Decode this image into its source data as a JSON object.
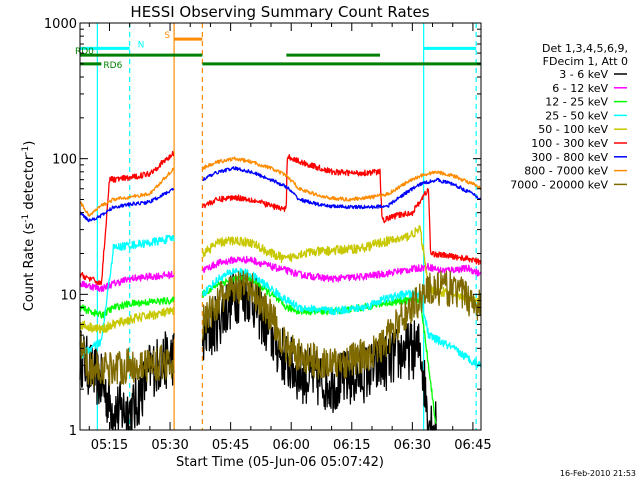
{
  "chart_data": {
    "type": "line",
    "title": "HESSI Observing Summary Count Rates",
    "xlabel": "Start Time (05-Jun-06 05:07:42)",
    "ylabel_main": "Count Rate (s",
    "ylabel_sup1": "-1",
    "ylabel_mid": " detector",
    "ylabel_sup2": "-1",
    "ylabel_end": ")",
    "footer": "16-Feb-2010 21:53",
    "x_start": "05:07:42",
    "x_end": "06:47:00",
    "xlim_minutes": [
      307.7,
      407.0
    ],
    "ylim": [
      1,
      1000
    ],
    "yscale": "log",
    "x_ticks": [
      "05:15",
      "05:30",
      "05:45",
      "06:00",
      "06:15",
      "06:30",
      "06:45"
    ],
    "x_tick_minutes": [
      315,
      330,
      345,
      360,
      375,
      390,
      405
    ],
    "y_ticks": [
      "1",
      "10",
      "100",
      "1000"
    ],
    "y_tick_values": [
      1,
      10,
      100,
      1000
    ],
    "legend": {
      "header_lines": [
        "Det 1,3,4,5,6,9,",
        "FDecim 1, Att 0"
      ],
      "entries": [
        {
          "label": "3 - 6 keV",
          "color": "#000000"
        },
        {
          "label": "6 - 12 keV",
          "color": "#ff00ff"
        },
        {
          "label": "12 - 25 keV",
          "color": "#00ff00"
        },
        {
          "label": "25 - 50 keV",
          "color": "#00ffff"
        },
        {
          "label": "50 - 100 keV",
          "color": "#c8c800"
        },
        {
          "label": "100 - 300 keV",
          "color": "#ff0000"
        },
        {
          "label": "300 - 800 keV",
          "color": "#0000ff"
        },
        {
          "label": "800 - 7000 keV",
          "color": "#ff8c00"
        },
        {
          "label": "7000 - 20000 keV",
          "color": "#7f6a00"
        }
      ]
    },
    "flags": [
      {
        "label": "N",
        "color": "#00ffff",
        "segments": [
          [
            307.7,
            320.0
          ],
          [
            392.8,
            405.8
          ]
        ],
        "y": 650
      },
      {
        "label": "S",
        "color": "#ff8c00",
        "segments": [
          [
            331.0,
            338.0
          ]
        ],
        "y": 760
      },
      {
        "label": "RD0",
        "color": "#008000",
        "segments": [
          [
            307.7,
            338.0
          ],
          [
            358.8,
            382.0
          ]
        ],
        "y": 580
      },
      {
        "label": "RD6",
        "color": "#008000",
        "segments": [
          [
            307.7,
            313.0
          ],
          [
            338.0,
            407.0
          ]
        ],
        "y": 500
      }
    ],
    "vlines": [
      {
        "minute": 312.0,
        "color": "#00ffff",
        "style": "solid"
      },
      {
        "minute": 320.0,
        "color": "#00ffff",
        "style": "dashed"
      },
      {
        "minute": 331.0,
        "color": "#ff8c00",
        "style": "solid"
      },
      {
        "minute": 338.0,
        "color": "#ff8c00",
        "style": "dashed"
      },
      {
        "minute": 392.8,
        "color": "#00ffff",
        "style": "solid"
      },
      {
        "minute": 405.8,
        "color": "#00ffff",
        "style": "dashed"
      }
    ],
    "gap": [
      331.0,
      338.0
    ],
    "segment_breaks": [
      358.8,
      382.0
    ],
    "series": [
      {
        "name": "3 - 6 keV",
        "color": "#000000",
        "noise": 0.5,
        "points": [
          [
            307.7,
            3.5
          ],
          [
            313.0,
            2.2
          ],
          [
            316.0,
            1.4
          ],
          [
            321.0,
            1.4
          ],
          [
            325.0,
            2.8
          ],
          [
            331.0,
            3.5
          ],
          [
            338.0,
            4.5
          ],
          [
            342.0,
            6.5
          ],
          [
            346.0,
            10.0
          ],
          [
            350.0,
            10.0
          ],
          [
            355.0,
            5.0
          ],
          [
            358.8,
            3.2
          ],
          [
            362.0,
            2.6
          ],
          [
            370.0,
            2.2
          ],
          [
            378.0,
            2.6
          ],
          [
            382.0,
            3.0
          ],
          [
            388.0,
            3.8
          ],
          [
            392.0,
            4.0
          ],
          [
            394.0,
            1.2
          ],
          [
            396.0,
            1.0
          ]
        ]
      },
      {
        "name": "6 - 12 keV",
        "color": "#ff00ff",
        "noise": 0.06,
        "points": [
          [
            307.7,
            12.0
          ],
          [
            313.0,
            11.0
          ],
          [
            316.0,
            12.0
          ],
          [
            320.0,
            13.0
          ],
          [
            325.0,
            13.5
          ],
          [
            331.0,
            14.0
          ],
          [
            338.0,
            15.0
          ],
          [
            342.0,
            17.0
          ],
          [
            346.0,
            18.0
          ],
          [
            350.0,
            18.0
          ],
          [
            355.0,
            16.0
          ],
          [
            358.8,
            15.0
          ],
          [
            362.0,
            14.0
          ],
          [
            370.0,
            13.0
          ],
          [
            378.0,
            13.5
          ],
          [
            382.0,
            14.0
          ],
          [
            388.0,
            15.0
          ],
          [
            394.0,
            16.0
          ],
          [
            397.0,
            15.0
          ],
          [
            404.0,
            15.5
          ],
          [
            407.0,
            14.0
          ]
        ]
      },
      {
        "name": "12 - 25 keV",
        "color": "#00ff00",
        "noise": 0.06,
        "points": [
          [
            307.7,
            8.0
          ],
          [
            313.0,
            7.0
          ],
          [
            316.0,
            8.0
          ],
          [
            320.0,
            8.5
          ],
          [
            325.0,
            8.8
          ],
          [
            331.0,
            9.0
          ],
          [
            338.0,
            10.0
          ],
          [
            342.0,
            12.0
          ],
          [
            346.0,
            13.0
          ],
          [
            350.0,
            13.0
          ],
          [
            355.0,
            10.0
          ],
          [
            358.8,
            8.0
          ],
          [
            362.0,
            7.5
          ],
          [
            370.0,
            7.5
          ],
          [
            378.0,
            8.0
          ],
          [
            382.0,
            8.5
          ],
          [
            388.0,
            9.0
          ],
          [
            392.0,
            9.0
          ],
          [
            394.0,
            3.0
          ],
          [
            396.0,
            1.0
          ]
        ]
      },
      {
        "name": "25 - 50 keV",
        "color": "#00ffff",
        "noise": 0.07,
        "points": [
          [
            307.7,
            3.5
          ],
          [
            313.0,
            4.5
          ],
          [
            316.0,
            22.0
          ],
          [
            320.0,
            23.0
          ],
          [
            325.0,
            24.0
          ],
          [
            331.0,
            26.0
          ],
          [
            338.0,
            10.0
          ],
          [
            342.0,
            13.0
          ],
          [
            346.0,
            15.0
          ],
          [
            350.0,
            14.0
          ],
          [
            355.0,
            11.0
          ],
          [
            358.8,
            9.0
          ],
          [
            362.0,
            8.0
          ],
          [
            370.0,
            7.5
          ],
          [
            378.0,
            8.0
          ],
          [
            382.0,
            9.0
          ],
          [
            388.0,
            10.0
          ],
          [
            392.0,
            10.0
          ],
          [
            394.0,
            5.0
          ],
          [
            400.0,
            4.0
          ],
          [
            405.0,
            3.2
          ],
          [
            407.0,
            3.0
          ]
        ]
      },
      {
        "name": "50 - 100 keV",
        "color": "#c8c800",
        "noise": 0.08,
        "points": [
          [
            307.7,
            6.0
          ],
          [
            313.0,
            5.5
          ],
          [
            316.0,
            6.0
          ],
          [
            320.0,
            6.5
          ],
          [
            325.0,
            7.0
          ],
          [
            331.0,
            7.5
          ],
          [
            338.0,
            20.0
          ],
          [
            342.0,
            24.0
          ],
          [
            346.0,
            25.0
          ],
          [
            350.0,
            24.0
          ],
          [
            355.0,
            20.0
          ],
          [
            358.8,
            18.0
          ],
          [
            362.0,
            20.0
          ],
          [
            370.0,
            21.0
          ],
          [
            378.0,
            22.0
          ],
          [
            382.0,
            24.0
          ],
          [
            388.0,
            26.0
          ],
          [
            392.0,
            30.0
          ],
          [
            394.0,
            11.0
          ],
          [
            400.0,
            10.0
          ],
          [
            405.0,
            9.0
          ],
          [
            407.0,
            8.5
          ]
        ]
      },
      {
        "name": "100 - 300 keV",
        "color": "#ff0000",
        "noise": 0.05,
        "points": [
          [
            307.7,
            14.0
          ],
          [
            313.0,
            12.0
          ],
          [
            315.0,
            70.0
          ],
          [
            320.0,
            72.0
          ],
          [
            325.0,
            78.0
          ],
          [
            331.0,
            110.0
          ],
          [
            338.0,
            45.0
          ],
          [
            342.0,
            50.0
          ],
          [
            346.0,
            52.0
          ],
          [
            350.0,
            50.0
          ],
          [
            355.0,
            45.0
          ],
          [
            358.8,
            42.0
          ],
          [
            359.0,
            105.0
          ],
          [
            362.0,
            95.0
          ],
          [
            370.0,
            80.0
          ],
          [
            376.0,
            78.0
          ],
          [
            382.0,
            80.0
          ],
          [
            382.5,
            35.0
          ],
          [
            386.0,
            38.0
          ],
          [
            390.0,
            40.0
          ],
          [
            394.0,
            60.0
          ],
          [
            394.5,
            20.0
          ],
          [
            400.0,
            19.0
          ],
          [
            405.0,
            18.0
          ],
          [
            407.0,
            17.0
          ]
        ]
      },
      {
        "name": "300 - 800 keV",
        "color": "#0000ff",
        "noise": 0.03,
        "points": [
          [
            307.7,
            40.0
          ],
          [
            310.0,
            35.0
          ],
          [
            313.0,
            38.0
          ],
          [
            316.0,
            44.0
          ],
          [
            320.0,
            46.0
          ],
          [
            325.0,
            48.0
          ],
          [
            331.0,
            60.0
          ],
          [
            338.0,
            70.0
          ],
          [
            342.0,
            80.0
          ],
          [
            346.0,
            85.0
          ],
          [
            350.0,
            80.0
          ],
          [
            355.0,
            70.0
          ],
          [
            358.8,
            62.0
          ],
          [
            362.0,
            50.0
          ],
          [
            368.0,
            45.0
          ],
          [
            374.0,
            44.0
          ],
          [
            380.0,
            44.0
          ],
          [
            384.0,
            45.0
          ],
          [
            388.0,
            55.0
          ],
          [
            392.0,
            65.0
          ],
          [
            396.0,
            70.0
          ],
          [
            400.0,
            65.0
          ],
          [
            405.0,
            55.0
          ],
          [
            407.0,
            50.0
          ]
        ]
      },
      {
        "name": "800 - 7000 keV",
        "color": "#ff8c00",
        "noise": 0.03,
        "points": [
          [
            307.7,
            48.0
          ],
          [
            310.0,
            38.0
          ],
          [
            313.0,
            45.0
          ],
          [
            316.0,
            50.0
          ],
          [
            320.0,
            52.0
          ],
          [
            325.0,
            55.0
          ],
          [
            331.0,
            85.0
          ],
          [
            338.0,
            85.0
          ],
          [
            342.0,
            95.0
          ],
          [
            346.0,
            100.0
          ],
          [
            350.0,
            95.0
          ],
          [
            355.0,
            85.0
          ],
          [
            358.8,
            75.0
          ],
          [
            362.0,
            60.0
          ],
          [
            368.0,
            52.0
          ],
          [
            374.0,
            50.0
          ],
          [
            380.0,
            52.0
          ],
          [
            384.0,
            55.0
          ],
          [
            388.0,
            65.0
          ],
          [
            392.0,
            75.0
          ],
          [
            396.0,
            80.0
          ],
          [
            400.0,
            75.0
          ],
          [
            405.0,
            65.0
          ],
          [
            407.0,
            60.0
          ]
        ]
      },
      {
        "name": "7000 - 20000 keV",
        "color": "#7f6a00",
        "noise": 0.3,
        "points": [
          [
            307.7,
            4.0
          ],
          [
            310.0,
            2.8
          ],
          [
            316.0,
            2.9
          ],
          [
            322.0,
            3.0
          ],
          [
            331.0,
            3.2
          ],
          [
            338.0,
            6.0
          ],
          [
            342.0,
            9.0
          ],
          [
            346.0,
            11.0
          ],
          [
            350.0,
            11.0
          ],
          [
            355.0,
            7.0
          ],
          [
            358.8,
            4.0
          ],
          [
            362.0,
            3.5
          ],
          [
            370.0,
            3.0
          ],
          [
            378.0,
            3.5
          ],
          [
            382.0,
            4.0
          ],
          [
            388.0,
            7.0
          ],
          [
            394.0,
            11.0
          ],
          [
            400.0,
            11.0
          ],
          [
            405.0,
            9.0
          ],
          [
            407.0,
            8.0
          ]
        ]
      }
    ]
  }
}
